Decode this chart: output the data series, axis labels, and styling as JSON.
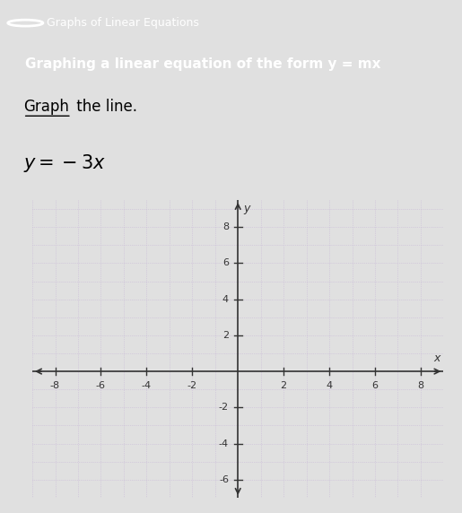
{
  "title_banner_text": "Graphs of Linear Equations",
  "subtitle_banner_text": "Graphing a linear equation of the form y = mx",
  "banner_bg_color": "#5bc4c4",
  "banner_text_color": "#ffffff",
  "page_bg_color": "#e0e0e0",
  "graph_bg_color": "#f5f5f5",
  "grid_color": "#c8b8d8",
  "axis_color": "#333333",
  "xmin": -9,
  "xmax": 9,
  "ymin": -7,
  "ymax": 9.5,
  "xticks": [
    -8,
    -6,
    -4,
    -2,
    2,
    4,
    6,
    8
  ],
  "yticks": [
    -6,
    -4,
    -2,
    2,
    4,
    6,
    8
  ],
  "tick_label_color": "#333333",
  "tick_fontsize": 8,
  "axis_label_x": "x",
  "axis_label_y": "y"
}
